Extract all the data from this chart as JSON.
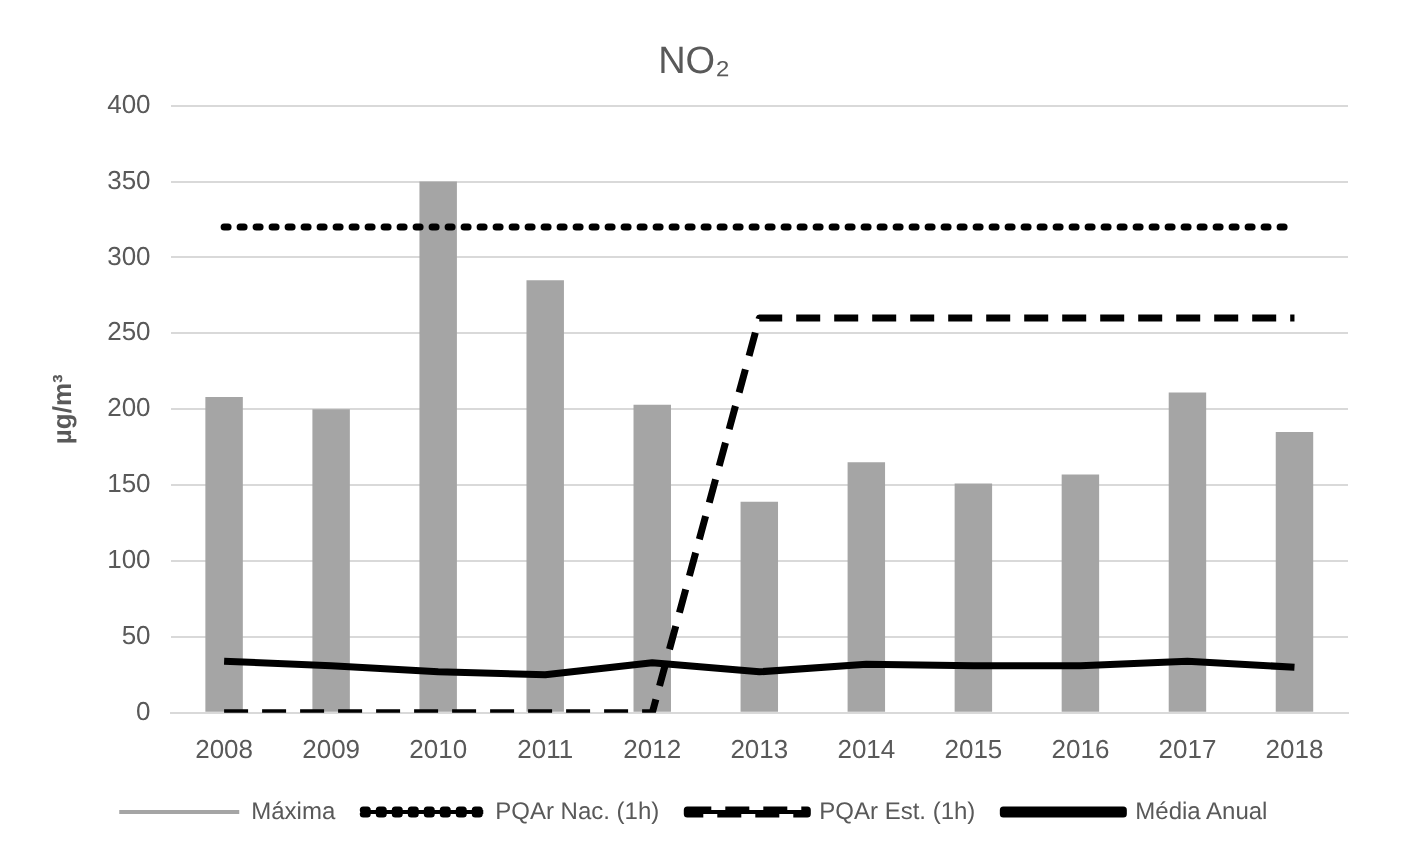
{
  "chart_data": {
    "type": "bar",
    "title": "NO₂",
    "ylabel": "µg/m³",
    "categories": [
      "2008",
      "2009",
      "2010",
      "2011",
      "2012",
      "2013",
      "2014",
      "2015",
      "2016",
      "2017",
      "2018"
    ],
    "series": [
      {
        "name": "Máxima",
        "color": "#a5a5a5",
        "values": [
          208,
          200,
          350,
          285,
          203,
          139,
          165,
          151,
          157,
          211,
          185
        ]
      },
      {
        "name": "PQAr Nac. (1h)",
        "type": "line",
        "line_style": "dotted",
        "color": "#000000",
        "values": [
          320,
          320,
          320,
          320,
          320,
          320,
          320,
          320,
          320,
          320,
          320
        ]
      },
      {
        "name": "PQAr Est. (1h)",
        "type": "line",
        "line_style": "dashed",
        "color": "#000000",
        "values": [
          0,
          0,
          0,
          0,
          0,
          260,
          260,
          260,
          260,
          260,
          260
        ]
      },
      {
        "name": "Média Anual",
        "type": "line",
        "line_style": "solid",
        "color": "#000000",
        "values": [
          34,
          31,
          27,
          25,
          33,
          27,
          32,
          31,
          31,
          34,
          30
        ]
      }
    ],
    "ylim": [
      0,
      400
    ],
    "yticks": [
      0,
      50,
      100,
      150,
      200,
      250,
      300,
      350,
      400
    ],
    "grid": "y",
    "legend": "bottom",
    "marker": "none"
  }
}
